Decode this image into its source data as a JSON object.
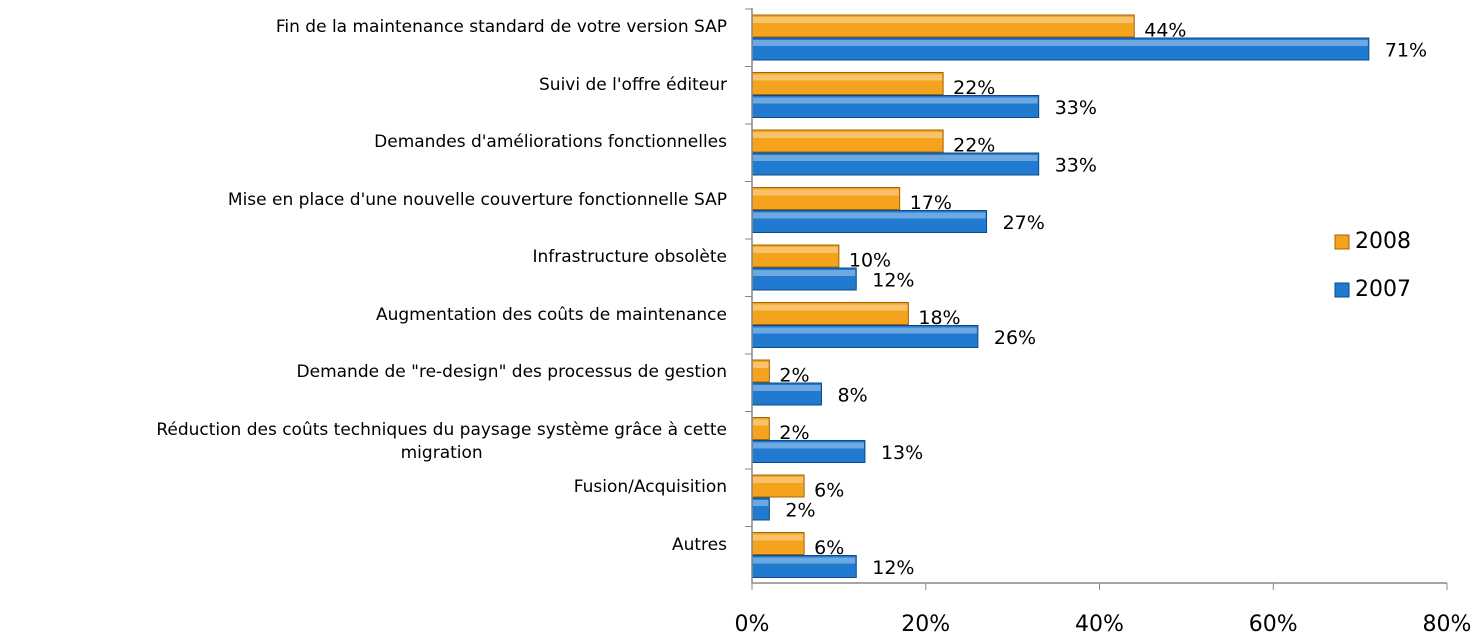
{
  "chart_data": {
    "type": "hbar",
    "categories": [
      "Fin de la maintenance standard de votre version SAP",
      "Suivi de l'offre éditeur",
      "Demandes d'améliorations fonctionnelles",
      "Mise en place d'une nouvelle couverture fonctionnelle SAP",
      "Infrastructure obsolète",
      "Augmentation des coûts de maintenance",
      "Demande de \"re-design\" des processus de gestion",
      "Réduction des coûts techniques du paysage système grâce à cette\nmigration",
      "Fusion/Acquisition",
      "Autres"
    ],
    "series": [
      {
        "name": "2008",
        "color": "#f5a31c",
        "values": [
          44,
          22,
          22,
          17,
          10,
          18,
          2,
          2,
          6,
          6
        ],
        "value_labels": [
          "44%",
          "22%",
          "22%",
          "17%",
          "10%",
          "18%",
          "2%",
          "2%",
          "6%",
          "6%"
        ]
      },
      {
        "name": "2007",
        "color": "#1f7ad0",
        "values": [
          71,
          33,
          33,
          27,
          12,
          26,
          8,
          13,
          2,
          12
        ],
        "value_labels": [
          "71%",
          "33%",
          "33%",
          "27%",
          "12%",
          "26%",
          "8%",
          "13%",
          "2%",
          "12%"
        ]
      }
    ],
    "xlim": [
      0,
      80
    ],
    "xticks": [
      {
        "value": 0,
        "label": "0%"
      },
      {
        "value": 20,
        "label": "20%"
      },
      {
        "value": 40,
        "label": "40%"
      },
      {
        "value": 60,
        "label": "60%"
      },
      {
        "value": 80,
        "label": "80%"
      }
    ],
    "legend": "right"
  }
}
